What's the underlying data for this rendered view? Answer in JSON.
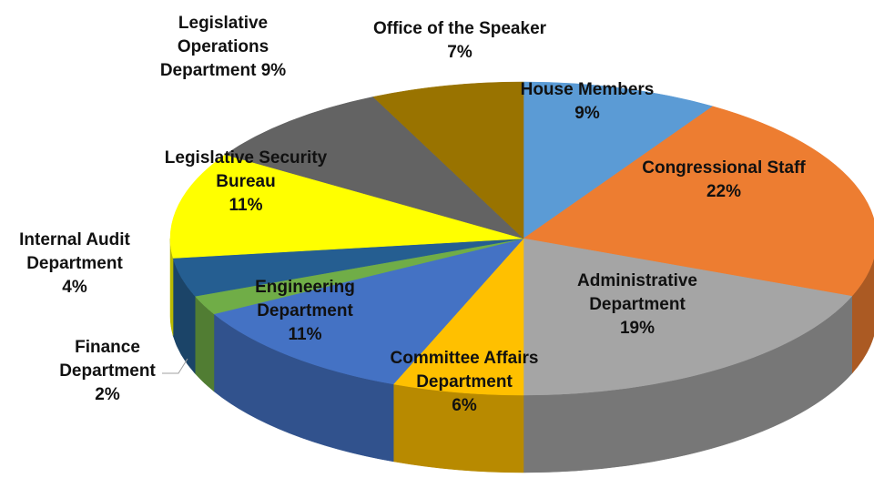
{
  "chart_data": {
    "type": "pie3d",
    "categories": [
      "House Members",
      "Congressional Staff",
      "Administrative Department",
      "Committee Affairs Department",
      "Engineering Department",
      "Finance Department",
      "Internal Audit Department",
      "Legislative Security Bureau",
      "Legislative Operations Department",
      "Office of the Speaker"
    ],
    "values": [
      9,
      22,
      19,
      6,
      11,
      2,
      4,
      11,
      9,
      7
    ],
    "value_labels": [
      "9%",
      "22%",
      "19%",
      "6%",
      "11%",
      "2%",
      "4%",
      "11%",
      "9%",
      "7%"
    ],
    "colors": [
      "#5b9bd5",
      "#ed7d31",
      "#a5a5a5",
      "#ffc000",
      "#4472c4",
      "#70ad47",
      "#255e91",
      "#ffff00",
      "#636363",
      "#997300"
    ]
  }
}
